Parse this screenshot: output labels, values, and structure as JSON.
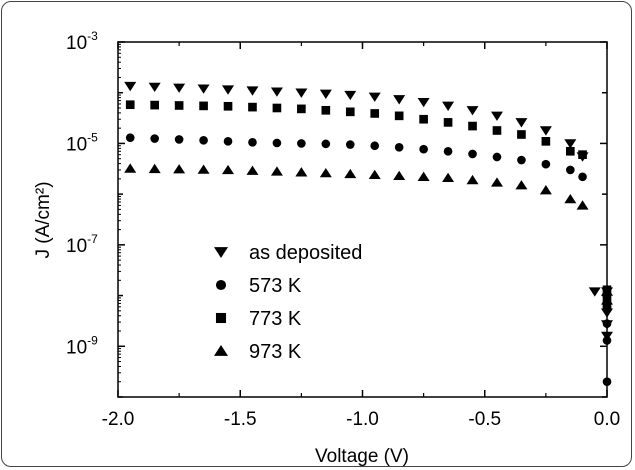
{
  "chart_data": {
    "type": "scatter",
    "xlabel": "Voltage (V)",
    "ylabel": "J (A/cm²)",
    "xlim": [
      -2.0,
      0.0
    ],
    "ylim": [
      1e-10,
      0.001
    ],
    "yscale": "log",
    "x_ticks": [
      -2.0,
      -1.5,
      -1.0,
      -0.5,
      0.0
    ],
    "x_tick_labels": [
      "-2.0",
      "-1.5",
      "-1.0",
      "-0.5",
      "0.0"
    ],
    "y_ticks": [
      0.001,
      1e-05,
      1e-07,
      1e-09
    ],
    "y_tick_labels": [
      {
        "base": "10",
        "exp": "-3"
      },
      {
        "base": "10",
        "exp": "-5"
      },
      {
        "base": "10",
        "exp": "-7"
      },
      {
        "base": "10",
        "exp": "-9"
      }
    ],
    "legend_position": "center-left",
    "grid": false,
    "series": [
      {
        "name": "as deposited",
        "marker": "triangle-down",
        "x": [
          -1.95,
          -1.85,
          -1.75,
          -1.65,
          -1.55,
          -1.45,
          -1.35,
          -1.25,
          -1.15,
          -1.05,
          -0.95,
          -0.85,
          -0.75,
          -0.65,
          -0.55,
          -0.45,
          -0.35,
          -0.25,
          -0.15,
          -0.1,
          -0.05,
          0.0,
          0.0,
          0.0,
          0.0
        ],
        "y": [
          0.000135,
          0.00013,
          0.000125,
          0.00012,
          0.000115,
          0.00011,
          0.000105,
          0.0001,
          9.5e-05,
          9e-05,
          8.3e-05,
          7.4e-05,
          6.5e-05,
          5.5e-05,
          4.5e-05,
          3.5e-05,
          2.6e-05,
          1.8e-05,
          1e-05,
          5.5e-06,
          1.2e-08,
          1.2e-08,
          4.6e-09,
          2.7e-09,
          1.6e-09
        ]
      },
      {
        "name": "573 K",
        "marker": "circle",
        "x": [
          -1.95,
          -1.85,
          -1.75,
          -1.65,
          -1.55,
          -1.45,
          -1.35,
          -1.25,
          -1.15,
          -1.05,
          -0.95,
          -0.85,
          -0.75,
          -0.65,
          -0.55,
          -0.45,
          -0.35,
          -0.25,
          -0.15,
          -0.1,
          0.0,
          0.0,
          0.0,
          0.0
        ],
        "y": [
          1.3e-05,
          1.25e-05,
          1.2e-05,
          1.15e-05,
          1.1e-05,
          1.05e-05,
          1.02e-05,
          1e-05,
          9.8e-06,
          9.5e-06,
          9e-06,
          8.4e-06,
          7.7e-06,
          7e-06,
          6.2e-06,
          5.4e-06,
          4.7e-06,
          3.9e-06,
          3e-06,
          2.2e-06,
          6e-09,
          2.8e-09,
          1.3e-09,
          2e-10
        ]
      },
      {
        "name": "773 K",
        "marker": "square",
        "x": [
          -1.95,
          -1.85,
          -1.75,
          -1.65,
          -1.55,
          -1.45,
          -1.35,
          -1.25,
          -1.15,
          -1.05,
          -0.95,
          -0.85,
          -0.75,
          -0.65,
          -0.55,
          -0.45,
          -0.35,
          -0.25,
          -0.15,
          -0.1,
          0.0,
          0.0,
          0.0
        ],
        "y": [
          5.8e-05,
          5.7e-05,
          5.6e-05,
          5.5e-05,
          5.4e-05,
          5.2e-05,
          5e-05,
          4.8e-05,
          4.5e-05,
          4.2e-05,
          3.9e-05,
          3.5e-05,
          3e-05,
          2.6e-05,
          2.2e-05,
          1.8e-05,
          1.5e-05,
          1.1e-05,
          7e-06,
          6e-06,
          1.3e-08,
          9e-09,
          6e-09
        ]
      },
      {
        "name": "973 K",
        "marker": "triangle-up",
        "x": [
          -1.95,
          -1.85,
          -1.75,
          -1.65,
          -1.55,
          -1.45,
          -1.35,
          -1.25,
          -1.15,
          -1.05,
          -0.95,
          -0.85,
          -0.75,
          -0.65,
          -0.55,
          -0.45,
          -0.35,
          -0.25,
          -0.15,
          -0.1,
          0.0,
          0.0
        ],
        "y": [
          3.2e-06,
          3.15e-06,
          3.1e-06,
          3.05e-06,
          3e-06,
          2.9e-06,
          2.8e-06,
          2.7e-06,
          2.6e-06,
          2.5e-06,
          2.4e-06,
          2.3e-06,
          2.2e-06,
          2.1e-06,
          1.9e-06,
          1.7e-06,
          1.5e-06,
          1.2e-06,
          8e-07,
          6e-07,
          1.2e-08,
          8e-09
        ]
      }
    ]
  }
}
